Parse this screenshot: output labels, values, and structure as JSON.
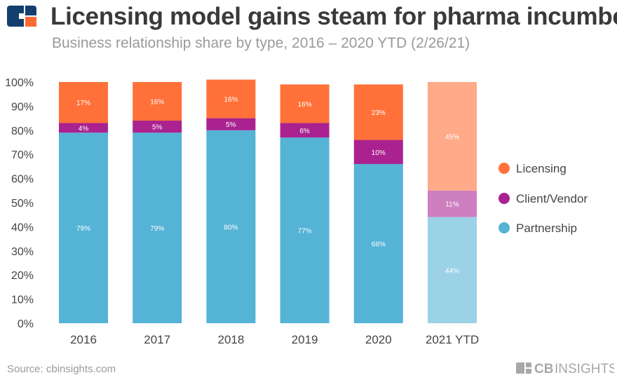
{
  "header": {
    "title": "Licensing model gains steam for pharma incumbents",
    "subtitle": "Business relationship share by type, 2016 – 2020 YTD (2/26/21)"
  },
  "footer": {
    "source": "Source: cbinsights.com",
    "brand": "CBINSIGHTS"
  },
  "chart_data": {
    "type": "bar",
    "stacked": true,
    "title": "Licensing model gains steam for pharma incumbents",
    "subtitle": "Business relationship share by type, 2016 – 2020 YTD (2/26/21)",
    "categories": [
      "2016",
      "2017",
      "2018",
      "2019",
      "2020",
      "2021 YTD"
    ],
    "ylim": [
      0,
      100
    ],
    "yticks": [
      "0%",
      "10%",
      "20%",
      "30%",
      "40%",
      "50%",
      "60%",
      "70%",
      "80%",
      "90%",
      "100%"
    ],
    "grid": false,
    "legend": "right",
    "highlight_faded_category": "2021 YTD",
    "series": [
      {
        "name": "Partnership",
        "values": [
          79,
          79,
          80,
          77,
          66,
          44
        ],
        "color": "#55b3d6",
        "faded_color": "#9cd2e5"
      },
      {
        "name": "Client/Vendor",
        "values": [
          4,
          5,
          5,
          6,
          10,
          11
        ],
        "color": "#a9228f",
        "faded_color": "#cd7fbf"
      },
      {
        "name": "Licensing",
        "values": [
          17,
          16,
          16,
          16,
          23,
          45
        ],
        "color": "#ff7139",
        "faded_color": "#ffaa88"
      }
    ]
  }
}
